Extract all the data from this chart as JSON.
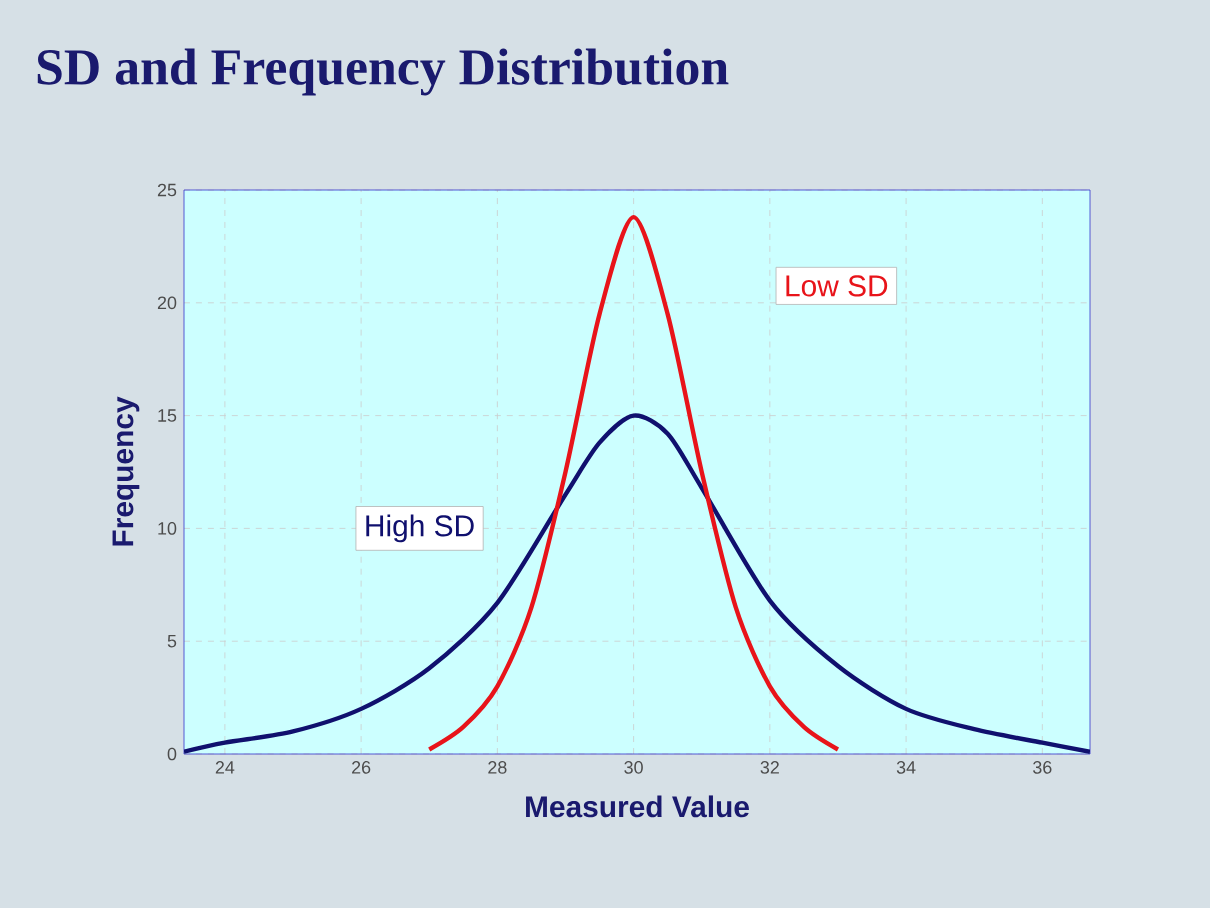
{
  "chart_data": {
    "type": "line",
    "title": "SD and Frequency Distribution",
    "xlabel": "Measured Value",
    "ylabel": "Frequency",
    "xlim": [
      23.4,
      36.7
    ],
    "xticks": [
      24,
      26,
      28,
      30,
      32,
      34,
      36
    ],
    "ylim": [
      0,
      25
    ],
    "yticks": [
      0,
      5,
      10,
      15,
      20,
      25
    ],
    "grid": true,
    "series": [
      {
        "name": "High SD",
        "color": "#10106e",
        "x": [
          23.4,
          24,
          25,
          26,
          27,
          28,
          29,
          29.5,
          30,
          30.5,
          31,
          32,
          33,
          34,
          35,
          36,
          36.7
        ],
        "values": [
          0.1,
          0.5,
          1.0,
          2.0,
          3.8,
          6.7,
          11.5,
          13.8,
          15,
          14.2,
          11.8,
          6.8,
          3.9,
          2.0,
          1.1,
          0.5,
          0.1
        ]
      },
      {
        "name": "Low SD",
        "color": "#e8141a",
        "x": [
          27,
          27.5,
          28,
          28.5,
          29,
          29.5,
          30,
          30.5,
          31,
          31.5,
          32,
          32.5,
          33
        ],
        "values": [
          0.2,
          1.2,
          3.0,
          6.5,
          12.5,
          19.5,
          23.8,
          19.5,
          12.5,
          6.5,
          3.0,
          1.2,
          0.2
        ]
      }
    ]
  }
}
